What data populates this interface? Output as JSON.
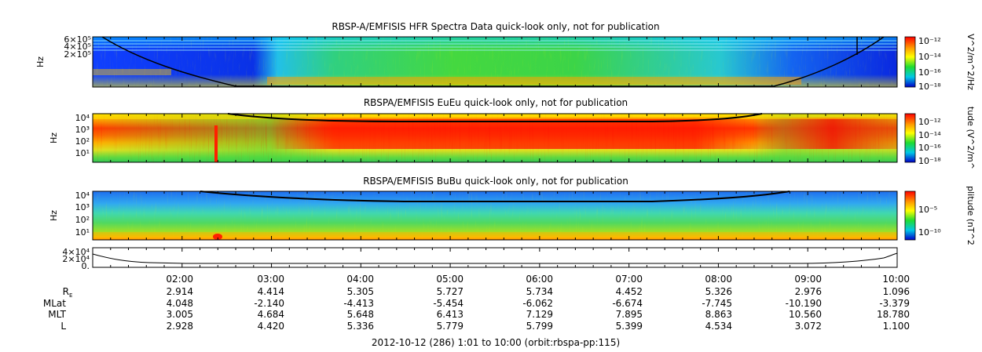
{
  "chart_data": [
    {
      "type": "heatmap",
      "title": "RBSP-A/EMFISIS  HFR Spectra Data quick-look only, not for publication",
      "ylabel": "Hz",
      "y_ticks": [
        "6×10⁵",
        "4×10⁵",
        "2×10⁵"
      ],
      "colorbar_label": "V^2/m^2/Hz",
      "colorbar_ticks": [
        "10⁻¹²",
        "10⁻¹⁴",
        "10⁻¹⁶",
        "10⁻¹⁸"
      ]
    },
    {
      "type": "heatmap",
      "title": "RBSPA/EMFISIS  EuEu quick-look only, not for publication",
      "ylabel": "Hz",
      "y_ticks": [
        "10⁴",
        "10³",
        "10²",
        "10¹"
      ],
      "colorbar_label": "tude (V^2/m^",
      "colorbar_ticks": [
        "10⁻¹²",
        "10⁻¹⁴",
        "10⁻¹⁶",
        "10⁻¹⁸"
      ]
    },
    {
      "type": "heatmap",
      "title": "RBSPA/EMFISIS  BuBu quick-look only, not for publication",
      "ylabel": "Hz",
      "y_ticks": [
        "10⁴",
        "10³",
        "10²",
        "10¹"
      ],
      "colorbar_label": "plitude (nT^2",
      "colorbar_ticks": [
        "10⁻⁵",
        "10⁻¹⁰"
      ]
    },
    {
      "type": "line",
      "title": "",
      "y_ticks": [
        "4×10⁴",
        "2×10⁴",
        "0."
      ]
    }
  ],
  "time_ticks": [
    "02:00",
    "03:00",
    "04:00",
    "05:00",
    "06:00",
    "07:00",
    "08:00",
    "09:00",
    "10:00"
  ],
  "ephemeris": [
    {
      "label": "R",
      "sub": "E",
      "values": [
        "2.914",
        "4.414",
        "5.305",
        "5.727",
        "5.734",
        "4.452",
        "5.326",
        "2.976",
        "1.096"
      ]
    },
    {
      "label": "MLat",
      "sub": "",
      "values": [
        "4.048",
        "-2.140",
        "-4.413",
        "-5.454",
        "-6.062",
        "-6.674",
        "-7.745",
        "-10.190",
        "-3.379"
      ]
    },
    {
      "label": "MLT",
      "sub": "",
      "values": [
        "3.005",
        "4.684",
        "5.648",
        "6.413",
        "7.129",
        "7.895",
        "8.863",
        "10.560",
        "18.780"
      ]
    },
    {
      "label": "L",
      "sub": "",
      "values": [
        "2.928",
        "4.420",
        "5.336",
        "5.779",
        "5.799",
        "5.399",
        "4.534",
        "3.072",
        "1.100"
      ]
    }
  ],
  "footer": "2012-10-12 (286) 1:01 to 10:00 (orbit:rbspa-pp:115)"
}
